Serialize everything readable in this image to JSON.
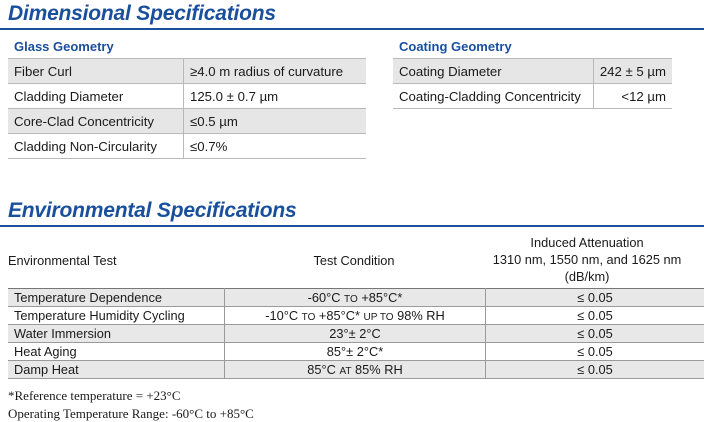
{
  "dimensional": {
    "title": "Dimensional Specifications",
    "glass": {
      "heading": "Glass Geometry",
      "rows": [
        {
          "label": "Fiber Curl",
          "value": "≥4.0 m radius of curvature"
        },
        {
          "label": "Cladding Diameter",
          "value": "125.0 ± 0.7 µm"
        },
        {
          "label": "Core-Clad Concentricity",
          "value": "≤0.5 µm"
        },
        {
          "label": "Cladding Non-Circularity",
          "value": "≤0.7%"
        }
      ]
    },
    "coating": {
      "heading": "Coating Geometry",
      "rows": [
        {
          "label": "Coating Diameter",
          "value": "242 ± 5 µm"
        },
        {
          "label": "Coating-Cladding Concentricity",
          "value": "<12 µm"
        }
      ]
    }
  },
  "environmental": {
    "title": "Environmental Specifications",
    "headers": {
      "test": "Environmental Test",
      "condition": "Test Condition",
      "attenuation_1": "Induced Attenuation",
      "attenuation_2": "1310 nm, 1550 nm, and 1625 nm",
      "attenuation_3": "(dB/km)"
    },
    "rows": [
      {
        "test": "Temperature Dependence",
        "cond_a": "-60°C",
        "cond_sc1": "TO",
        "cond_b": "+85°C*",
        "cond_sc2": "",
        "cond_c": "",
        "value": "≤ 0.05"
      },
      {
        "test": "Temperature Humidity Cycling",
        "cond_a": "-10°C",
        "cond_sc1": "TO",
        "cond_b": "+85°C*",
        "cond_sc2": "UP TO",
        "cond_c": "98% RH",
        "value": "≤ 0.05"
      },
      {
        "test": "Water Immersion",
        "cond_a": "23°± 2°C",
        "cond_sc1": "",
        "cond_b": "",
        "cond_sc2": "",
        "cond_c": "",
        "value": "≤ 0.05"
      },
      {
        "test": "Heat Aging",
        "cond_a": "85°± 2°C*",
        "cond_sc1": "",
        "cond_b": "",
        "cond_sc2": "",
        "cond_c": "",
        "value": "≤ 0.05"
      },
      {
        "test": "Damp Heat",
        "cond_a": "85°C",
        "cond_sc1": "AT",
        "cond_b": "85% RH",
        "cond_sc2": "",
        "cond_c": "",
        "value": "≤ 0.05"
      }
    ],
    "footnotes": [
      "*Reference temperature = +23°C",
      "Operating Temperature Range: -60°C to +85°C"
    ]
  },
  "colors": {
    "accent": "#1a4f9c",
    "row_shade": "#e6e6e6"
  }
}
